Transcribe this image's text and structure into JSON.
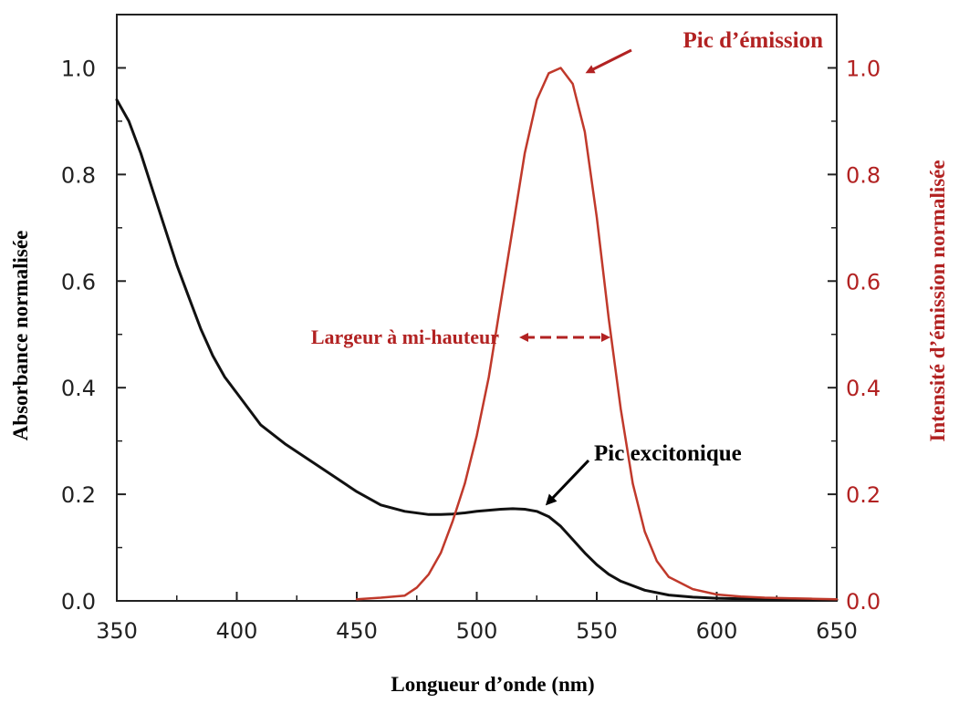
{
  "chart_data": {
    "type": "line",
    "xlabel": "Longueur d’onde (nm)",
    "ylabel_left": "Absorbance normalisée",
    "ylabel_right": "Intensité d’émission normalisée",
    "xlim": [
      350,
      650
    ],
    "ylim": [
      0,
      1.1
    ],
    "x_ticks": [
      350,
      400,
      450,
      500,
      550,
      600,
      650
    ],
    "y_ticks": [
      0.0,
      0.2,
      0.4,
      0.6,
      0.8,
      1.0
    ],
    "x_tick_labels": [
      "350",
      "400",
      "450",
      "500",
      "550",
      "600",
      "650"
    ],
    "y_tick_labels": [
      "0.0",
      "0.2",
      "0.4",
      "0.6",
      "0.8",
      "1.0"
    ],
    "grid": false,
    "colors": {
      "absorbance": "#111111",
      "emission": "#c0392b",
      "annotation_red": "#b22222",
      "annotation_black": "#000000"
    },
    "series": [
      {
        "key": "absorbance",
        "axis": "left",
        "x": [
          350,
          355,
          360,
          365,
          370,
          375,
          380,
          385,
          390,
          395,
          400,
          410,
          420,
          430,
          440,
          450,
          460,
          470,
          480,
          485,
          490,
          495,
          500,
          505,
          510,
          515,
          520,
          525,
          530,
          535,
          540,
          545,
          550,
          555,
          560,
          570,
          580,
          590,
          600,
          620,
          650
        ],
        "y": [
          0.94,
          0.9,
          0.84,
          0.77,
          0.7,
          0.63,
          0.57,
          0.51,
          0.46,
          0.42,
          0.39,
          0.33,
          0.295,
          0.265,
          0.235,
          0.205,
          0.18,
          0.168,
          0.162,
          0.162,
          0.163,
          0.165,
          0.168,
          0.17,
          0.172,
          0.173,
          0.172,
          0.168,
          0.158,
          0.14,
          0.115,
          0.09,
          0.068,
          0.05,
          0.037,
          0.02,
          0.011,
          0.007,
          0.005,
          0.003,
          0.002
        ]
      },
      {
        "key": "emission",
        "axis": "right",
        "x": [
          450,
          460,
          470,
          475,
          480,
          485,
          490,
          495,
          500,
          505,
          510,
          515,
          520,
          525,
          530,
          535,
          540,
          545,
          550,
          555,
          560,
          565,
          570,
          575,
          580,
          590,
          600,
          610,
          620,
          630,
          640,
          650
        ],
        "y": [
          0.003,
          0.006,
          0.01,
          0.025,
          0.05,
          0.09,
          0.15,
          0.22,
          0.31,
          0.42,
          0.56,
          0.7,
          0.84,
          0.94,
          0.99,
          1.0,
          0.97,
          0.88,
          0.72,
          0.53,
          0.36,
          0.22,
          0.13,
          0.075,
          0.045,
          0.022,
          0.012,
          0.008,
          0.006,
          0.005,
          0.004,
          0.003
        ]
      }
    ],
    "annotations": [
      {
        "key": "emission_peak",
        "text": "Pic d’émission"
      },
      {
        "key": "fwhm",
        "text": "Largeur à mi-hauteur"
      },
      {
        "key": "excitonic_peak",
        "text": "Pic excitonique"
      }
    ]
  }
}
